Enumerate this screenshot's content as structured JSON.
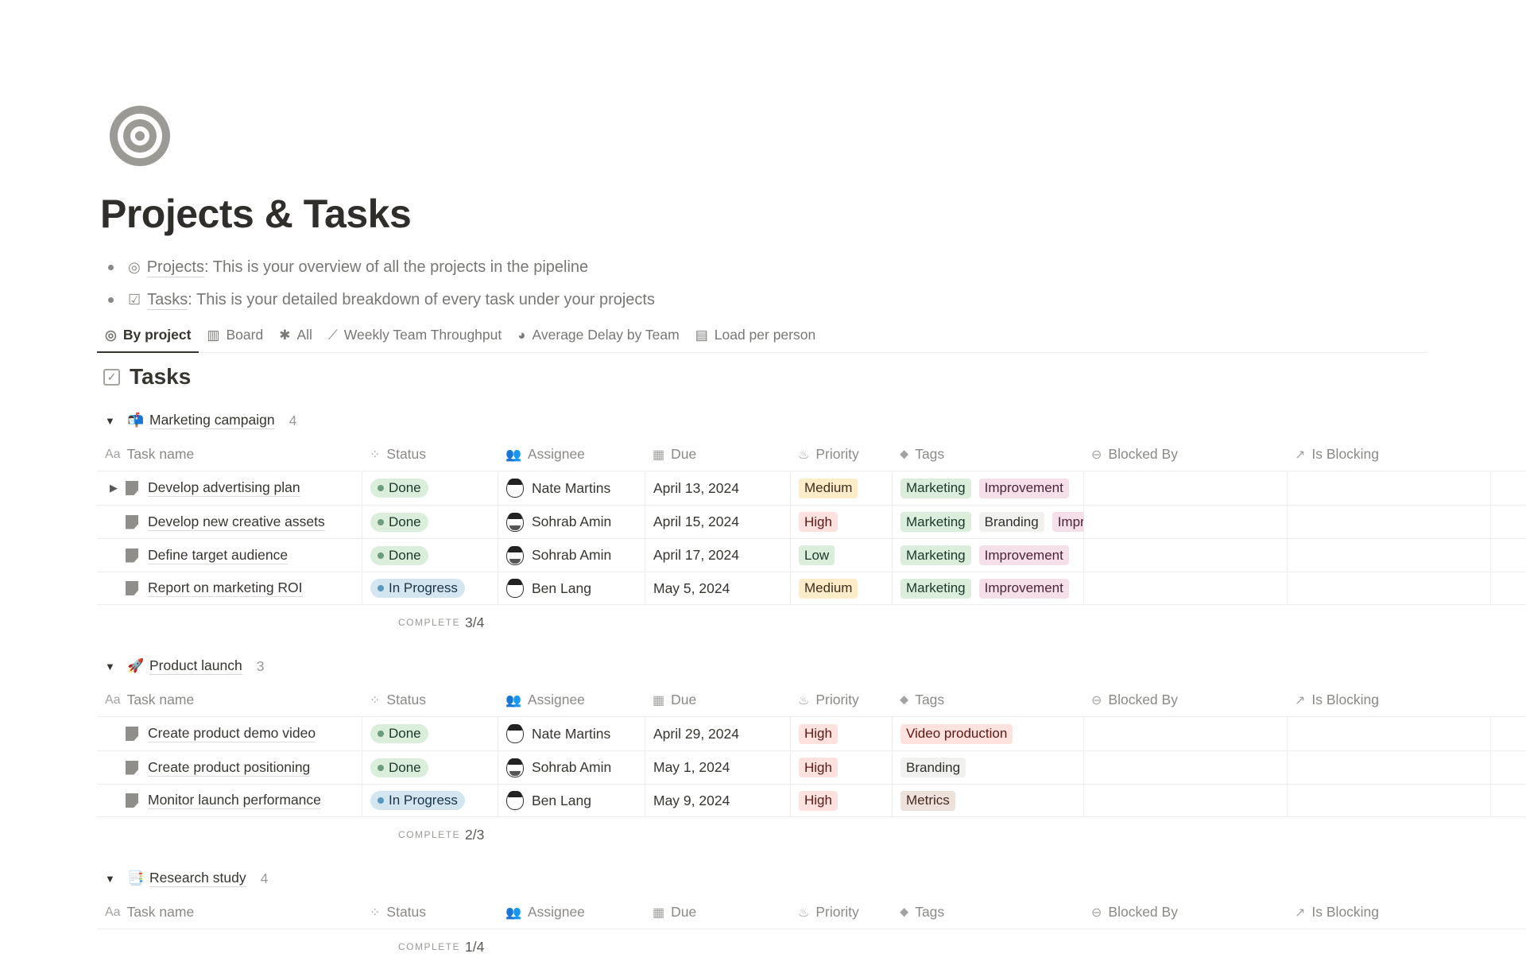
{
  "page": {
    "icon": "target-icon",
    "title": "Projects & Tasks",
    "bullets": [
      {
        "icon": "projects-link-icon",
        "link": "Projects",
        "text": ": This is your overview of all the projects in the pipeline"
      },
      {
        "icon": "tasks-link-icon",
        "link": "Tasks",
        "text": ": This is your detailed breakdown of every task under your projects"
      }
    ]
  },
  "tabs": [
    {
      "label": "By project",
      "icon": "target-icon",
      "active": true
    },
    {
      "label": "Board",
      "icon": "board-icon"
    },
    {
      "label": "All",
      "icon": "asterisk-icon"
    },
    {
      "label": "Weekly Team Throughput",
      "icon": "line-chart-icon"
    },
    {
      "label": "Average Delay by Team",
      "icon": "pie-chart-icon"
    },
    {
      "label": "Load per person",
      "icon": "bar-chart-icon"
    }
  ],
  "database": {
    "title": "Tasks",
    "icon": "checkbox-icon"
  },
  "columns": [
    {
      "label": "Task name",
      "icon": "Aa"
    },
    {
      "label": "Status",
      "icon": "status-icon"
    },
    {
      "label": "Assignee",
      "icon": "people-icon"
    },
    {
      "label": "Due",
      "icon": "calendar-icon"
    },
    {
      "label": "Priority",
      "icon": "fire-icon"
    },
    {
      "label": "Tags",
      "icon": "tag-icon"
    },
    {
      "label": "Blocked By",
      "icon": "blocked-icon"
    },
    {
      "label": "Is Blocking",
      "icon": "arrow-up-right-icon"
    }
  ],
  "colors": {
    "Done": {
      "bg": "#dbeddb",
      "dot": "#6c9b7d",
      "fg": "#1c3829"
    },
    "In Progress": {
      "bg": "#d3e5ef",
      "dot": "#5b97bd",
      "fg": "#183347"
    },
    "Medium": {
      "bg": "#fdecc8",
      "fg": "#402c1b"
    },
    "High": {
      "bg": "#ffe2dd",
      "fg": "#5d1715"
    },
    "Low": {
      "bg": "#dbeddb",
      "fg": "#1c3829"
    },
    "Marketing": {
      "bg": "#dbeddb",
      "fg": "#1c3829"
    },
    "Improvement": {
      "bg": "#f5e0e9",
      "fg": "#4c2337"
    },
    "Branding": {
      "bg": "#f1f1ef",
      "fg": "#32302c"
    },
    "Video production": {
      "bg": "#ffe2dd",
      "fg": "#5d1715"
    },
    "Metrics": {
      "bg": "#eee0da",
      "fg": "#442a1e"
    }
  },
  "complete_label": "COMPLETE",
  "groups": [
    {
      "emoji": "📬",
      "name": "Marketing campaign",
      "count": "4",
      "complete": "3/4",
      "rows": [
        {
          "name": "Develop advertising plan",
          "expandable": true,
          "status": "Done",
          "assignee": "Nate Martins",
          "due": "April 13, 2024",
          "priority": "Medium",
          "tags": [
            "Marketing",
            "Improvement"
          ]
        },
        {
          "name": "Develop new creative assets",
          "status": "Done",
          "assignee": "Sohrab Amin",
          "due": "April 15, 2024",
          "priority": "High",
          "tags": [
            "Marketing",
            "Branding",
            "Improvement"
          ]
        },
        {
          "name": "Define target audience",
          "status": "Done",
          "assignee": "Sohrab Amin",
          "due": "April 17, 2024",
          "priority": "Low",
          "tags": [
            "Marketing",
            "Improvement"
          ]
        },
        {
          "name": "Report on marketing ROI",
          "status": "In Progress",
          "assignee": "Ben Lang",
          "due": "May 5, 2024",
          "priority": "Medium",
          "tags": [
            "Marketing",
            "Improvement"
          ]
        }
      ]
    },
    {
      "emoji": "🚀",
      "name": "Product launch",
      "count": "3",
      "complete": "2/3",
      "rows": [
        {
          "name": "Create product demo video",
          "status": "Done",
          "assignee": "Nate Martins",
          "due": "April 29, 2024",
          "priority": "High",
          "tags": [
            "Video production"
          ]
        },
        {
          "name": "Create product positioning",
          "status": "Done",
          "assignee": "Sohrab Amin",
          "due": "May 1, 2024",
          "priority": "High",
          "tags": [
            "Branding"
          ]
        },
        {
          "name": "Monitor launch performance",
          "status": "In Progress",
          "assignee": "Ben Lang",
          "due": "May 9, 2024",
          "priority": "High",
          "tags": [
            "Metrics"
          ]
        }
      ]
    },
    {
      "emoji": "📑",
      "name": "Research study",
      "count": "4",
      "complete": "1/4",
      "rows": []
    }
  ]
}
